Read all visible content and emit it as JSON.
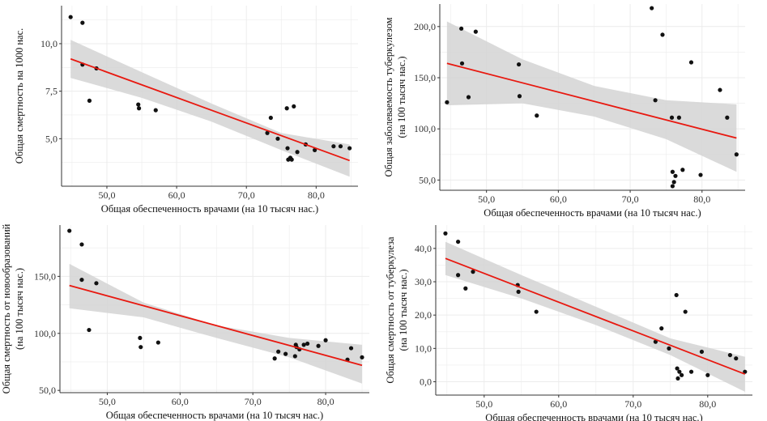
{
  "chart_data": [
    {
      "type": "scatter",
      "xlabel": "Общая обеспеченность врачами (на 10 тысяч нас.)",
      "ylabel": [
        "Общая смертность на 1000 нас."
      ],
      "xlim": [
        43.5,
        86
      ],
      "ylim": [
        2.5,
        12
      ],
      "xticks": [
        50,
        60,
        70,
        80
      ],
      "xtick_labels": [
        "50,0",
        "60,0",
        "70,0",
        "80,0"
      ],
      "yticks": [
        5,
        7.5,
        10
      ],
      "ytick_labels": [
        "5,0",
        "7,5",
        "10,0"
      ],
      "points": [
        [
          44.8,
          11.4
        ],
        [
          46.5,
          11.1
        ],
        [
          46.5,
          8.9
        ],
        [
          47.5,
          7.0
        ],
        [
          48.5,
          8.7
        ],
        [
          54.5,
          6.8
        ],
        [
          54.6,
          6.6
        ],
        [
          57.0,
          6.5
        ],
        [
          73.0,
          5.3
        ],
        [
          73.5,
          6.1
        ],
        [
          74.5,
          5.0
        ],
        [
          75.8,
          6.6
        ],
        [
          75.9,
          4.5
        ],
        [
          76.0,
          3.9
        ],
        [
          76.3,
          4.0
        ],
        [
          76.5,
          3.9
        ],
        [
          76.8,
          6.7
        ],
        [
          77.3,
          4.3
        ],
        [
          78.5,
          4.7
        ],
        [
          79.8,
          4.4
        ],
        [
          82.5,
          4.6
        ],
        [
          83.5,
          4.6
        ],
        [
          84.8,
          4.5
        ]
      ],
      "fit_line": [
        [
          44.8,
          9.2
        ],
        [
          84.8,
          3.85
        ]
      ],
      "confidence_band": {
        "upper": [
          [
            44.8,
            10.2
          ],
          [
            55,
            8.5
          ],
          [
            65,
            6.85
          ],
          [
            75,
            5.3
          ],
          [
            84.8,
            4.7
          ]
        ],
        "lower": [
          [
            44.8,
            8.2
          ],
          [
            55,
            7.15
          ],
          [
            65,
            5.9
          ],
          [
            75,
            4.4
          ],
          [
            84.8,
            3.0
          ]
        ]
      }
    },
    {
      "type": "scatter",
      "xlabel": "Общая обеспеченность врачами (на 10 тысяч нас.)",
      "ylabel": [
        "Общая заболеваемость туберкулезом",
        "(на 100 тысяч нас.)"
      ],
      "xlim": [
        43.5,
        86
      ],
      "ylim": [
        40,
        222
      ],
      "xticks": [
        50,
        60,
        70,
        80
      ],
      "xtick_labels": [
        "50,0",
        "60,0",
        "70,0",
        "80,0"
      ],
      "yticks": [
        50,
        100,
        150,
        200
      ],
      "ytick_labels": [
        "50,0",
        "100,0",
        "150,0",
        "200,0"
      ],
      "points": [
        [
          44.5,
          126
        ],
        [
          46.5,
          198
        ],
        [
          46.6,
          164
        ],
        [
          47.5,
          131
        ],
        [
          48.5,
          195
        ],
        [
          54.5,
          163
        ],
        [
          54.6,
          132
        ],
        [
          57.0,
          113
        ],
        [
          73.0,
          218
        ],
        [
          73.5,
          128
        ],
        [
          74.5,
          192
        ],
        [
          75.8,
          111
        ],
        [
          75.9,
          58
        ],
        [
          75.9,
          44
        ],
        [
          76.1,
          48
        ],
        [
          76.3,
          54
        ],
        [
          76.8,
          111
        ],
        [
          77.3,
          60
        ],
        [
          78.5,
          165
        ],
        [
          79.8,
          55
        ],
        [
          82.5,
          138
        ],
        [
          83.5,
          111
        ],
        [
          84.8,
          75
        ]
      ],
      "fit_line": [
        [
          44.5,
          164
        ],
        [
          84.8,
          91
        ]
      ],
      "confidence_band": {
        "upper": [
          [
            44.5,
            205
          ],
          [
            55,
            168
          ],
          [
            65,
            142
          ],
          [
            75,
            128
          ],
          [
            84.8,
            124
          ]
        ],
        "lower": [
          [
            44.5,
            123
          ],
          [
            55,
            125
          ],
          [
            65,
            112
          ],
          [
            75,
            90
          ],
          [
            84.8,
            58
          ]
        ]
      }
    },
    {
      "type": "scatter",
      "xlabel": "Общая обеспеченность врачами (на 10 тысяч нас.)",
      "ylabel": [
        "Общая смертность от новообразований",
        "(на 100 тысяч нас.)"
      ],
      "xlim": [
        43.5,
        86
      ],
      "ylim": [
        48,
        195
      ],
      "xticks": [
        50,
        60,
        70,
        80
      ],
      "xtick_labels": [
        "50,0",
        "60,0",
        "70,0",
        "80,0"
      ],
      "yticks": [
        50,
        100,
        150
      ],
      "ytick_labels": [
        "50,0",
        "100,0",
        "150,0"
      ],
      "points": [
        [
          44.8,
          190
        ],
        [
          46.5,
          178
        ],
        [
          46.5,
          147
        ],
        [
          47.5,
          103
        ],
        [
          48.5,
          144
        ],
        [
          54.5,
          96
        ],
        [
          54.6,
          88
        ],
        [
          57.0,
          92
        ],
        [
          73.0,
          78
        ],
        [
          73.5,
          84
        ],
        [
          74.5,
          82
        ],
        [
          75.8,
          80
        ],
        [
          75.9,
          90
        ],
        [
          76.0,
          88
        ],
        [
          76.4,
          86
        ],
        [
          77.0,
          90
        ],
        [
          77.5,
          91
        ],
        [
          79.0,
          89
        ],
        [
          80.0,
          94
        ],
        [
          83.0,
          77
        ],
        [
          83.5,
          87
        ],
        [
          85.0,
          79
        ]
      ],
      "fit_line": [
        [
          44.8,
          142
        ],
        [
          85.0,
          72
        ]
      ],
      "confidence_band": {
        "upper": [
          [
            44.8,
            161
          ],
          [
            55,
            127
          ],
          [
            65,
            107
          ],
          [
            75,
            96
          ],
          [
            85.0,
            90
          ]
        ],
        "lower": [
          [
            44.8,
            122
          ],
          [
            55,
            114
          ],
          [
            65,
            96
          ],
          [
            75,
            79
          ],
          [
            85.0,
            56
          ]
        ]
      }
    },
    {
      "type": "scatter",
      "xlabel": "Общая обеспеченность врачами (на 10 тысяч нас.)",
      "ylabel": [
        "Общая смертность от туберкулеза",
        "(на 100 тысяч нас.)"
      ],
      "xlim": [
        43.5,
        86
      ],
      "ylim": [
        -4,
        47
      ],
      "xticks": [
        50,
        60,
        70,
        80
      ],
      "xtick_labels": [
        "50,0",
        "60,0",
        "70,0",
        "80,0"
      ],
      "yticks": [
        0,
        10,
        20,
        30,
        40
      ],
      "ytick_labels": [
        "0,0",
        "10,0",
        "20,0",
        "30,0",
        "40,0"
      ],
      "points": [
        [
          44.8,
          44.5
        ],
        [
          46.5,
          42
        ],
        [
          46.5,
          32
        ],
        [
          47.5,
          28
        ],
        [
          48.5,
          33
        ],
        [
          54.5,
          29
        ],
        [
          54.6,
          27
        ],
        [
          57.0,
          21
        ],
        [
          73.0,
          12
        ],
        [
          73.8,
          16
        ],
        [
          74.8,
          10
        ],
        [
          75.8,
          26
        ],
        [
          75.9,
          4
        ],
        [
          76.0,
          1
        ],
        [
          76.2,
          3
        ],
        [
          76.5,
          2
        ],
        [
          77.0,
          21
        ],
        [
          77.8,
          3
        ],
        [
          79.2,
          9
        ],
        [
          80.0,
          2
        ],
        [
          83.0,
          8
        ],
        [
          83.8,
          7
        ],
        [
          85.0,
          3
        ]
      ],
      "fit_line": [
        [
          44.8,
          37
        ],
        [
          85.0,
          2.3
        ]
      ],
      "confidence_band": {
        "upper": [
          [
            44.8,
            42
          ],
          [
            55,
            32
          ],
          [
            65,
            22.5
          ],
          [
            75,
            13
          ],
          [
            85.0,
            7.5
          ]
        ],
        "lower": [
          [
            44.8,
            32
          ],
          [
            55,
            25
          ],
          [
            65,
            17
          ],
          [
            75,
            8
          ],
          [
            85.0,
            -3
          ]
        ]
      }
    }
  ],
  "colors": {
    "points": "#111111",
    "fit_line": "#e8180f",
    "band": "#d3d3d3",
    "grid": "#ececec",
    "frame": "#333333"
  }
}
